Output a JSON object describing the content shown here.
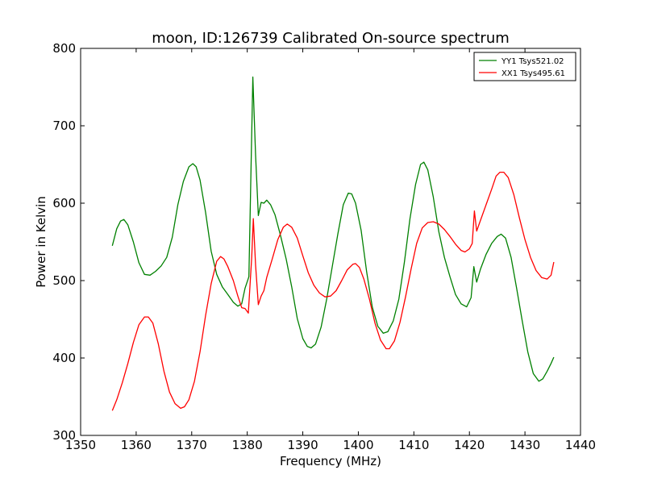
{
  "chart_data": {
    "type": "line",
    "title": "moon, ID:126739 Calibrated On-source spectrum",
    "xlabel": "Frequency (MHz)",
    "ylabel": "Power in Kelvin",
    "xlim": [
      1350,
      1440
    ],
    "ylim": [
      300,
      800
    ],
    "xticks": [
      1350,
      1360,
      1370,
      1380,
      1390,
      1400,
      1410,
      1420,
      1430,
      1440
    ],
    "yticks": [
      300,
      400,
      500,
      600,
      700,
      800
    ],
    "grid": false,
    "legend_position": "top-right",
    "series": [
      {
        "name": "YY1 Tsys521.02",
        "color": "#008000",
        "points": [
          [
            1355.7,
            545
          ],
          [
            1356.5,
            567
          ],
          [
            1357.2,
            577
          ],
          [
            1357.8,
            579
          ],
          [
            1358.5,
            572
          ],
          [
            1359.5,
            550
          ],
          [
            1360.5,
            523
          ],
          [
            1361.5,
            508
          ],
          [
            1362.5,
            507
          ],
          [
            1363.5,
            512
          ],
          [
            1364.5,
            519
          ],
          [
            1365.5,
            530
          ],
          [
            1366.5,
            556
          ],
          [
            1367.5,
            598
          ],
          [
            1368.5,
            628
          ],
          [
            1369.5,
            647
          ],
          [
            1370.2,
            651
          ],
          [
            1370.8,
            647
          ],
          [
            1371.5,
            630
          ],
          [
            1372.5,
            588
          ],
          [
            1373.5,
            538
          ],
          [
            1374.5,
            508
          ],
          [
            1375.5,
            492
          ],
          [
            1376.5,
            482
          ],
          [
            1377.5,
            472
          ],
          [
            1378.3,
            467
          ],
          [
            1379.0,
            470
          ],
          [
            1379.6,
            490
          ],
          [
            1380.3,
            505
          ],
          [
            1381.0,
            763
          ],
          [
            1381.5,
            662
          ],
          [
            1382.0,
            584
          ],
          [
            1382.5,
            601
          ],
          [
            1383.0,
            600
          ],
          [
            1383.5,
            604
          ],
          [
            1384.2,
            598
          ],
          [
            1385.0,
            585
          ],
          [
            1386.0,
            558
          ],
          [
            1387.0,
            528
          ],
          [
            1388.0,
            492
          ],
          [
            1389.0,
            451
          ],
          [
            1390.0,
            425
          ],
          [
            1390.8,
            415
          ],
          [
            1391.5,
            413
          ],
          [
            1392.3,
            418
          ],
          [
            1393.3,
            440
          ],
          [
            1394.3,
            476
          ],
          [
            1395.3,
            518
          ],
          [
            1396.3,
            560
          ],
          [
            1397.3,
            598
          ],
          [
            1398.2,
            613
          ],
          [
            1398.8,
            612
          ],
          [
            1399.5,
            600
          ],
          [
            1400.5,
            565
          ],
          [
            1401.5,
            511
          ],
          [
            1402.5,
            466
          ],
          [
            1403.5,
            441
          ],
          [
            1404.5,
            432
          ],
          [
            1405.3,
            434
          ],
          [
            1406.3,
            448
          ],
          [
            1407.3,
            476
          ],
          [
            1408.3,
            524
          ],
          [
            1409.3,
            580
          ],
          [
            1410.3,
            624
          ],
          [
            1411.2,
            650
          ],
          [
            1411.8,
            653
          ],
          [
            1412.5,
            643
          ],
          [
            1413.5,
            608
          ],
          [
            1414.5,
            563
          ],
          [
            1415.5,
            530
          ],
          [
            1416.5,
            505
          ],
          [
            1417.5,
            482
          ],
          [
            1418.5,
            470
          ],
          [
            1419.5,
            466
          ],
          [
            1420.3,
            478
          ],
          [
            1420.8,
            518
          ],
          [
            1421.3,
            498
          ],
          [
            1422.0,
            515
          ],
          [
            1423.0,
            534
          ],
          [
            1424.0,
            548
          ],
          [
            1425.0,
            557
          ],
          [
            1425.7,
            560
          ],
          [
            1426.5,
            555
          ],
          [
            1427.5,
            530
          ],
          [
            1428.5,
            490
          ],
          [
            1429.5,
            448
          ],
          [
            1430.5,
            408
          ],
          [
            1431.5,
            380
          ],
          [
            1432.5,
            370
          ],
          [
            1433.2,
            373
          ],
          [
            1434.0,
            383
          ],
          [
            1434.7,
            393
          ],
          [
            1435.2,
            401
          ]
        ]
      },
      {
        "name": "XX1 Tsys495.61",
        "color": "#ff0000",
        "points": [
          [
            1355.7,
            332
          ],
          [
            1356.5,
            346
          ],
          [
            1357.5,
            368
          ],
          [
            1358.5,
            393
          ],
          [
            1359.5,
            420
          ],
          [
            1360.5,
            443
          ],
          [
            1361.5,
            453
          ],
          [
            1362.2,
            453
          ],
          [
            1363.0,
            445
          ],
          [
            1364.0,
            418
          ],
          [
            1365.0,
            383
          ],
          [
            1366.0,
            356
          ],
          [
            1367.0,
            341
          ],
          [
            1368.0,
            335
          ],
          [
            1368.7,
            337
          ],
          [
            1369.5,
            346
          ],
          [
            1370.5,
            370
          ],
          [
            1371.5,
            408
          ],
          [
            1372.5,
            455
          ],
          [
            1373.5,
            496
          ],
          [
            1374.5,
            525
          ],
          [
            1375.2,
            531
          ],
          [
            1375.8,
            528
          ],
          [
            1376.5,
            518
          ],
          [
            1377.5,
            500
          ],
          [
            1378.3,
            480
          ],
          [
            1379.0,
            465
          ],
          [
            1379.6,
            464
          ],
          [
            1380.2,
            458
          ],
          [
            1380.8,
            530
          ],
          [
            1381.1,
            580
          ],
          [
            1381.5,
            520
          ],
          [
            1382.0,
            469
          ],
          [
            1382.5,
            480
          ],
          [
            1383.0,
            487
          ],
          [
            1383.5,
            504
          ],
          [
            1384.5,
            528
          ],
          [
            1385.5,
            553
          ],
          [
            1386.5,
            569
          ],
          [
            1387.2,
            573
          ],
          [
            1388.0,
            569
          ],
          [
            1389.0,
            555
          ],
          [
            1390.0,
            532
          ],
          [
            1391.0,
            510
          ],
          [
            1392.0,
            494
          ],
          [
            1393.0,
            484
          ],
          [
            1394.0,
            479
          ],
          [
            1395.0,
            480
          ],
          [
            1396.0,
            487
          ],
          [
            1397.0,
            500
          ],
          [
            1398.0,
            514
          ],
          [
            1399.0,
            521
          ],
          [
            1399.5,
            522
          ],
          [
            1400.2,
            517
          ],
          [
            1401.0,
            502
          ],
          [
            1402.0,
            476
          ],
          [
            1403.0,
            445
          ],
          [
            1404.0,
            423
          ],
          [
            1405.0,
            412
          ],
          [
            1405.6,
            412
          ],
          [
            1406.5,
            422
          ],
          [
            1407.5,
            446
          ],
          [
            1408.5,
            479
          ],
          [
            1409.5,
            515
          ],
          [
            1410.5,
            548
          ],
          [
            1411.5,
            568
          ],
          [
            1412.5,
            575
          ],
          [
            1413.5,
            576
          ],
          [
            1414.5,
            573
          ],
          [
            1415.5,
            566
          ],
          [
            1416.5,
            557
          ],
          [
            1417.5,
            547
          ],
          [
            1418.5,
            539
          ],
          [
            1419.2,
            537
          ],
          [
            1420.0,
            541
          ],
          [
            1420.5,
            548
          ],
          [
            1420.9,
            590
          ],
          [
            1421.3,
            564
          ],
          [
            1422.0,
            578
          ],
          [
            1423.0,
            598
          ],
          [
            1424.0,
            618
          ],
          [
            1424.8,
            635
          ],
          [
            1425.5,
            640
          ],
          [
            1426.2,
            640
          ],
          [
            1427.0,
            633
          ],
          [
            1428.0,
            611
          ],
          [
            1429.0,
            581
          ],
          [
            1430.0,
            553
          ],
          [
            1431.0,
            530
          ],
          [
            1432.0,
            513
          ],
          [
            1433.0,
            504
          ],
          [
            1434.0,
            502
          ],
          [
            1434.7,
            507
          ],
          [
            1435.2,
            524
          ]
        ]
      }
    ]
  }
}
